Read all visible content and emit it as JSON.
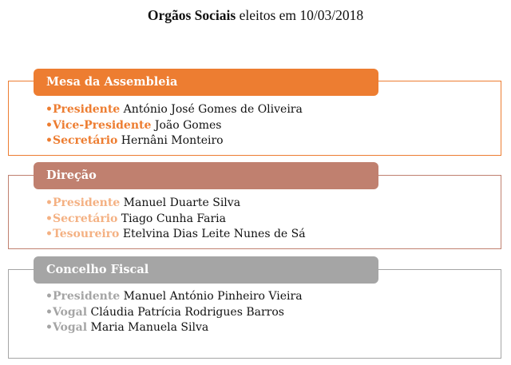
{
  "title": {
    "bold": "Orgãos Sociais",
    "rest": " eleitos em 10/03/2018"
  },
  "sections": [
    {
      "header": "Mesa da Assembleia",
      "color": "#ED7D31",
      "items": [
        {
          "bullet": "•",
          "role": "Presidente",
          "name": " António José Gomes de Oliveira"
        },
        {
          "bullet": "•",
          "role": "Vice-Presidente",
          "name": " João Gomes"
        },
        {
          "bullet": "•",
          "role": "Secretário",
          "name": " Hernâni Monteiro"
        }
      ]
    },
    {
      "header": "Direção",
      "color": "#C0806F",
      "role_color": "#F4B183",
      "items": [
        {
          "bullet": "•",
          "role": "Presidente",
          "name": " Manuel Duarte Silva"
        },
        {
          "bullet": "•",
          "role": "Secretário",
          "name": " Tiago Cunha Faria"
        },
        {
          "bullet": "•",
          "role": "Tesoureiro",
          "name": " Etelvina Dias Leite Nunes de Sá"
        }
      ]
    },
    {
      "header": "Concelho Fiscal",
      "color": "#A5A5A5",
      "items": [
        {
          "bullet": "•",
          "role": "Presidente",
          "name": " Manuel António Pinheiro Vieira"
        },
        {
          "bullet": "•",
          "role": "Vogal",
          "name": " Cláudia Patrícia Rodrigues Barros"
        },
        {
          "bullet": "•",
          "role": "Vogal",
          "name": " Maria Manuela Silva"
        }
      ]
    }
  ]
}
